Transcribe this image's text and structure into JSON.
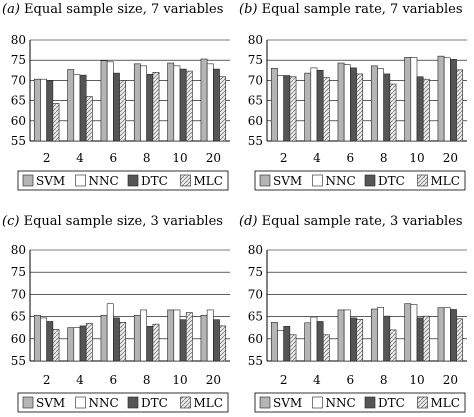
{
  "colors": {
    "SVM": "#b5b5b5",
    "NNC": "#ffffff",
    "DTC": "#555555",
    "MLC": "#ececec",
    "axis": "#000000",
    "grid": "#000000"
  },
  "chart_data": [
    {
      "type": "bar",
      "panel_label": "(a)",
      "title": "Equal sample size, 7 variables",
      "categories": [
        "2",
        "4",
        "6",
        "8",
        "10",
        "20"
      ],
      "ylim": [
        55,
        80
      ],
      "yticks": [
        55,
        60,
        65,
        70,
        75,
        80
      ],
      "grid": true,
      "legend_position": "bottom",
      "series": [
        {
          "name": "SVM",
          "values": [
            70.3,
            72.7,
            74.9,
            74.1,
            74.3,
            75.3
          ]
        },
        {
          "name": "NNC",
          "values": [
            70.3,
            71.4,
            74.6,
            73.6,
            73.6,
            74.1
          ]
        },
        {
          "name": "DTC",
          "values": [
            69.9,
            71.3,
            71.8,
            71.5,
            72.8,
            72.8
          ]
        },
        {
          "name": "MLC",
          "values": [
            64.3,
            66.0,
            70.0,
            72.0,
            72.3,
            70.9
          ]
        }
      ]
    },
    {
      "type": "bar",
      "panel_label": "(b)",
      "title": "Equal sample rate, 7 variables",
      "categories": [
        "2",
        "4",
        "6",
        "8",
        "10",
        "20"
      ],
      "ylim": [
        55,
        80
      ],
      "yticks": [
        55,
        60,
        65,
        70,
        75,
        80
      ],
      "grid": true,
      "legend_position": "bottom",
      "series": [
        {
          "name": "SVM",
          "values": [
            73.0,
            71.8,
            74.3,
            73.6,
            75.7,
            76.0
          ]
        },
        {
          "name": "NNC",
          "values": [
            71.2,
            73.1,
            73.9,
            72.9,
            75.7,
            75.6
          ]
        },
        {
          "name": "DTC",
          "values": [
            71.2,
            72.5,
            73.1,
            71.6,
            70.9,
            75.2
          ]
        },
        {
          "name": "MLC",
          "values": [
            70.9,
            70.7,
            71.6,
            69.1,
            70.3,
            72.6
          ]
        }
      ]
    },
    {
      "type": "bar",
      "panel_label": "(c)",
      "title": "Equal sample size, 3 variables",
      "categories": [
        "2",
        "4",
        "6",
        "8",
        "10",
        "20"
      ],
      "ylim": [
        55,
        80
      ],
      "yticks": [
        55,
        60,
        65,
        70,
        75,
        80
      ],
      "grid": true,
      "legend_position": "bottom",
      "series": [
        {
          "name": "SVM",
          "values": [
            65.3,
            62.5,
            65.3,
            65.3,
            66.5,
            65.3
          ]
        },
        {
          "name": "NNC",
          "values": [
            64.7,
            62.5,
            67.9,
            66.5,
            66.5,
            66.5
          ]
        },
        {
          "name": "DTC",
          "values": [
            63.9,
            62.9,
            64.7,
            62.8,
            64.3,
            64.3
          ]
        },
        {
          "name": "MLC",
          "values": [
            62.1,
            63.5,
            63.7,
            63.3,
            65.9,
            62.9
          ]
        }
      ]
    },
    {
      "type": "bar",
      "panel_label": "(d)",
      "title": "Equal sample rate, 3 variables",
      "categories": [
        "2",
        "4",
        "6",
        "8",
        "10",
        "20"
      ],
      "ylim": [
        55,
        80
      ],
      "yticks": [
        55,
        60,
        65,
        70,
        75,
        80
      ],
      "grid": true,
      "legend_position": "bottom",
      "series": [
        {
          "name": "SVM",
          "values": [
            63.7,
            63.6,
            66.5,
            66.7,
            67.9,
            67.0
          ]
        },
        {
          "name": "NNC",
          "values": [
            61.9,
            64.9,
            66.5,
            67.1,
            67.7,
            67.0
          ]
        },
        {
          "name": "DTC",
          "values": [
            62.8,
            63.9,
            64.7,
            65.1,
            64.7,
            66.6
          ]
        },
        {
          "name": "MLC",
          "values": [
            60.9,
            60.9,
            64.4,
            62.0,
            65.1,
            64.5
          ]
        }
      ]
    }
  ]
}
